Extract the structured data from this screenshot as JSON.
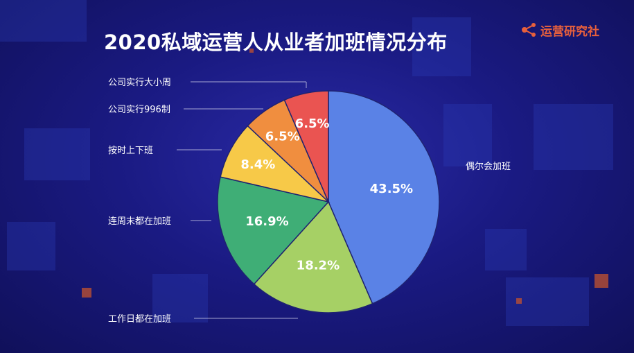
{
  "header": {
    "title": "2020私域运营人从业者加班情况分布",
    "brand": "运营研究社"
  },
  "brand_icon": "share-nodes-icon",
  "colors": {
    "background": "#16166a",
    "brand": "#e8603c",
    "leader_line": "#c9c9e6"
  },
  "chart_data": {
    "type": "pie",
    "title": "2020私域运营人从业者加班情况分布",
    "slices": [
      {
        "label": "偶尔会加班",
        "value": 43.5,
        "display": "43.5%",
        "color": "#5a82e6"
      },
      {
        "label": "工作日都在加班",
        "value": 18.2,
        "display": "18.2%",
        "color": "#a6d065"
      },
      {
        "label": "连周末都在加班",
        "value": 16.9,
        "display": "16.9%",
        "color": "#3fae76"
      },
      {
        "label": "按时上下班",
        "value": 8.4,
        "display": "8.4%",
        "color": "#f7c948"
      },
      {
        "label": "公司实行996制",
        "value": 6.5,
        "display": "6.5%",
        "color": "#f08e3f"
      },
      {
        "label": "公司实行大小周",
        "value": 6.5,
        "display": "6.5%",
        "color": "#ea5451"
      }
    ]
  }
}
